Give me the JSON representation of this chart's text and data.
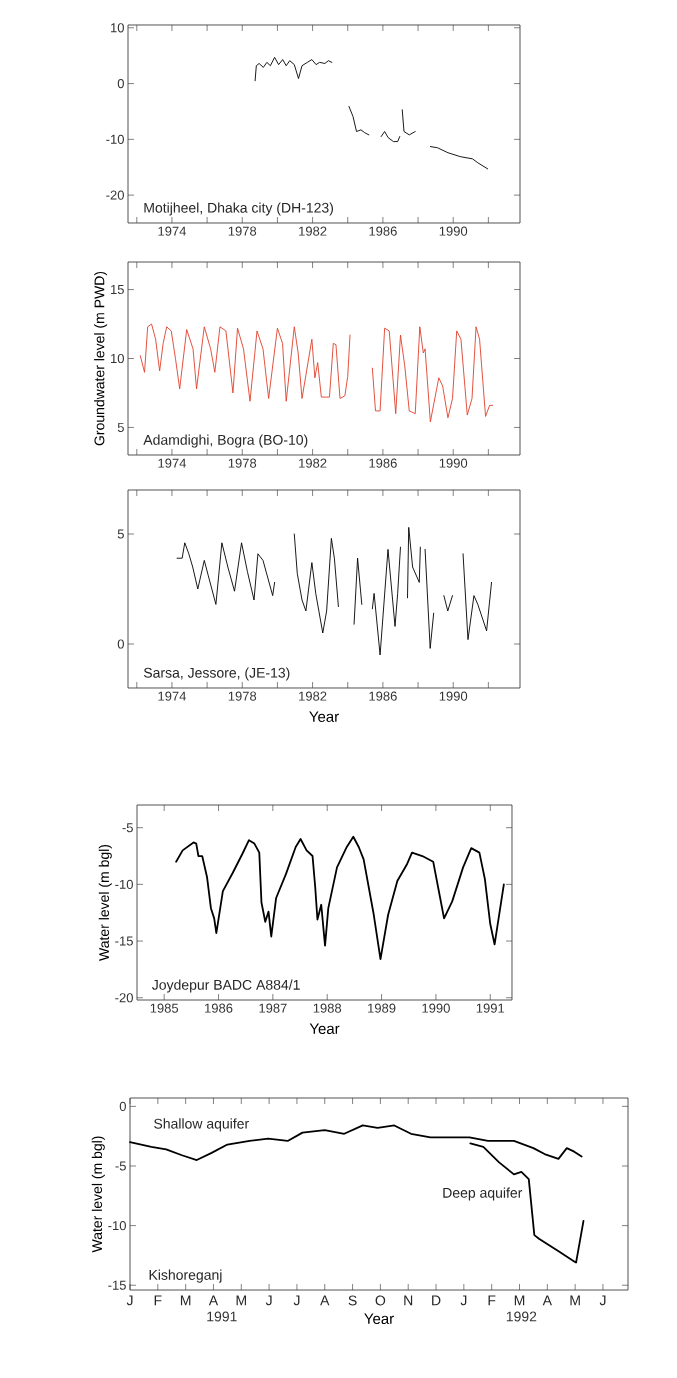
{
  "chart_data": [
    {
      "type": "line",
      "title": "Motijheel, Dhaka city (DH-123)",
      "xlim": [
        1971.5,
        1993.8
      ],
      "ylim": [
        -25,
        10.5
      ],
      "xticks": [
        {
          "value": 1972,
          "label": null
        },
        1974,
        {
          "value": 1976,
          "label": null
        },
        1978,
        {
          "value": 1980,
          "label": null
        },
        1982,
        {
          "value": 1984,
          "label": null
        },
        1986,
        {
          "value": 1988,
          "label": null
        },
        1990,
        {
          "value": 1992,
          "label": null
        }
      ],
      "yticks": [
        10,
        0,
        -10,
        -20
      ],
      "series": [
        {
          "color": "#000000",
          "x": [
            1978.73,
            1978.8,
            1978.96,
            1979.2,
            1979.4,
            1979.6,
            1979.84,
            1980.07,
            1980.3,
            1980.5,
            1980.7,
            1980.96,
            1981.2,
            1981.4,
            1981.7,
            1981.96,
            1982.2,
            1982.4,
            1982.7,
            1982.9,
            1983.1
          ],
          "values": [
            0.5,
            3.2,
            3.6,
            2.9,
            3.8,
            3.2,
            4.7,
            3.4,
            4.3,
            3.2,
            4.1,
            3.4,
            0.9,
            3.2,
            3.8,
            4.3,
            3.4,
            3.8,
            3.6,
            4.1,
            3.8
          ]
        },
        {
          "color": "#000000",
          "x": [
            1984.07,
            1984.3,
            1984.5,
            1984.75,
            1984.96,
            1985.2
          ],
          "values": [
            -4.1,
            -5.9,
            -8.6,
            -8.3,
            -8.8,
            -9.2
          ]
        },
        {
          "color": "#000000",
          "x": [
            1985.9,
            1986.1,
            1986.3,
            1986.6,
            1986.84,
            1986.96
          ],
          "values": [
            -9.5,
            -8.6,
            -9.7,
            -10.4,
            -10.4,
            -9.5
          ]
        },
        {
          "color": "#000000",
          "x": [
            1987.1,
            1987.2,
            1987.5,
            1987.84
          ],
          "values": [
            -4.7,
            -8.6,
            -9.2,
            -8.6
          ]
        },
        {
          "color": "#000000",
          "x": [
            1988.7,
            1989.1,
            1989.7,
            1990.4,
            1991.1,
            1991.4,
            1991.96
          ],
          "values": [
            -11.3,
            -11.5,
            -12.4,
            -13.1,
            -13.5,
            -14.2,
            -15.3
          ]
        }
      ]
    },
    {
      "type": "line",
      "title": "Adamdighi, Bogra (BO-10)",
      "ylabel": "Groundwater level (m PWD)",
      "xlim": [
        1971.5,
        1993.8
      ],
      "ylim": [
        3,
        17
      ],
      "xticks": [
        {
          "value": 1972,
          "label": null
        },
        1974,
        {
          "value": 1976,
          "label": null
        },
        1978,
        {
          "value": 1980,
          "label": null
        },
        1982,
        {
          "value": 1984,
          "label": null
        },
        1986,
        {
          "value": 1988,
          "label": null
        },
        1990,
        {
          "value": 1992,
          "label": null
        }
      ],
      "yticks": [
        15,
        10,
        5
      ],
      "series": [
        {
          "color": "#e0402a",
          "x": [
            1972.2,
            1972.44,
            1972.62,
            1972.84,
            1973.07,
            1973.3,
            1973.5,
            1973.7,
            1973.96,
            1974.2,
            1974.44,
            1974.84,
            1975.2,
            1975.4,
            1975.84,
            1976.2,
            1976.44,
            1976.73,
            1977.07,
            1977.47,
            1977.73,
            1978.07,
            1978.44,
            1978.84,
            1979.18,
            1979.5,
            1980.0,
            1980.29,
            1980.5,
            1980.96,
            1981.18,
            1981.4,
            1981.96,
            1982.13,
            1982.29,
            1982.5,
            1982.96,
            1983.18,
            1983.33,
            1983.56,
            1983.84,
            1984.0,
            1984.13
          ],
          "values": [
            10.2,
            9.0,
            12.3,
            12.5,
            11.4,
            9.1,
            11.1,
            12.3,
            12.0,
            10.0,
            7.8,
            12.1,
            10.7,
            7.8,
            12.3,
            10.7,
            9.0,
            12.3,
            12.0,
            7.5,
            12.2,
            10.7,
            6.9,
            12.0,
            10.7,
            7.1,
            12.2,
            11.1,
            6.9,
            12.3,
            10.4,
            7.1,
            11.4,
            8.6,
            9.7,
            7.2,
            7.2,
            11.1,
            11.0,
            7.1,
            7.3,
            8.7,
            11.7
          ]
        },
        {
          "color": "#e0402a",
          "x": [
            1985.4,
            1985.58,
            1985.84,
            1986.1,
            1986.36,
            1986.73,
            1987.0,
            1987.24,
            1987.5,
            1987.84,
            1988.1,
            1988.3,
            1988.4,
            1988.7,
            1989.18,
            1989.4,
            1989.7,
            1989.96,
            1990.2,
            1990.44,
            1990.8,
            1991.07,
            1991.3,
            1991.5,
            1991.84,
            1992.07,
            1992.24
          ],
          "values": [
            9.3,
            6.2,
            6.2,
            12.2,
            12.0,
            6.0,
            11.7,
            9.5,
            6.2,
            6.0,
            12.3,
            10.4,
            10.7,
            5.4,
            8.6,
            8.0,
            5.7,
            7.1,
            12.0,
            11.4,
            5.9,
            7.1,
            12.3,
            11.4,
            5.8,
            6.6,
            6.6
          ]
        }
      ]
    },
    {
      "type": "line",
      "title": "Sarsa, Jessore, (JE-13)",
      "xlabel": "Year",
      "xlim": [
        1971.5,
        1993.8
      ],
      "ylim": [
        -2,
        7
      ],
      "xticks": [
        {
          "value": 1972,
          "label": null
        },
        1974,
        {
          "value": 1976,
          "label": null
        },
        1978,
        {
          "value": 1980,
          "label": null
        },
        1982,
        {
          "value": 1984,
          "label": null
        },
        1986,
        {
          "value": 1988,
          "label": null
        },
        1990,
        {
          "value": 1992,
          "label": null
        }
      ],
      "yticks": [
        5,
        0
      ],
      "series": [
        {
          "color": "#000000",
          "x": [
            1974.29,
            1974.58,
            1974.73,
            1974.96,
            1975.18,
            1975.47,
            1975.84,
            1976.07,
            1976.5,
            1976.84,
            1977.18,
            1977.56,
            1977.96,
            1978.29,
            1978.67,
            1978.89,
            1979.18,
            1979.73,
            1979.84
          ],
          "values": [
            3.9,
            3.9,
            4.6,
            4.1,
            3.5,
            2.5,
            3.8,
            3.1,
            1.8,
            4.6,
            3.5,
            2.4,
            4.6,
            3.3,
            2.0,
            4.1,
            3.8,
            2.2,
            2.8
          ]
        },
        {
          "color": "#000000",
          "x": [
            1980.96,
            1981.13,
            1981.4,
            1981.62,
            1981.96,
            1982.18,
            1982.58,
            1982.8,
            1983.07,
            1983.24,
            1983.47
          ],
          "values": [
            5.0,
            3.2,
            2.0,
            1.5,
            3.7,
            2.3,
            0.5,
            1.5,
            4.8,
            3.9,
            1.7
          ]
        },
        {
          "color": "#000000",
          "x": [
            1984.36,
            1984.56,
            1984.8
          ],
          "values": [
            0.9,
            3.9,
            1.8
          ]
        },
        {
          "color": "#000000",
          "x": [
            1985.4,
            1985.5,
            1985.84,
            1986.29,
            1986.69,
            1986.84,
            1987.0
          ],
          "values": [
            1.6,
            2.3,
            -0.5,
            4.3,
            0.8,
            2.3,
            4.4
          ]
        },
        {
          "color": "#000000",
          "x": [
            1987.4,
            1987.47,
            1987.69,
            1988.07,
            1988.13
          ],
          "values": [
            2.1,
            5.3,
            3.5,
            2.8,
            4.4
          ]
        },
        {
          "color": "#000000",
          "x": [
            1988.4,
            1988.69,
            1988.89
          ],
          "values": [
            4.3,
            -0.2,
            1.4
          ]
        },
        {
          "color": "#000000",
          "x": [
            1989.47,
            1989.69,
            1989.96
          ],
          "values": [
            2.2,
            1.5,
            2.2
          ]
        },
        {
          "color": "#000000",
          "x": [
            1990.56,
            1990.84,
            1991.18,
            1991.4,
            1991.9,
            1992.18
          ],
          "values": [
            4.1,
            0.2,
            2.2,
            1.8,
            0.6,
            2.8
          ]
        }
      ]
    },
    {
      "type": "line",
      "title": "Joydepur BADC A884/1",
      "xlabel": "Year",
      "ylabel": "Water level (m bgl)",
      "xlim": [
        1984.5,
        1991.4
      ],
      "ylim": [
        -20.2,
        -3
      ],
      "xticks": [
        1985,
        1986,
        1987,
        1988,
        1989,
        1990,
        1991
      ],
      "yticks": [
        -5,
        -10,
        -15,
        -20
      ],
      "series": [
        {
          "color": "#000000",
          "x": [
            1985.22,
            1985.34,
            1985.54,
            1985.59,
            1985.63,
            1985.7,
            1985.79,
            1985.86,
            1985.92,
            1985.96,
            1986.08,
            1986.26,
            1986.44,
            1986.56,
            1986.66,
            1986.75,
            1986.79,
            1986.86,
            1986.92,
            1986.97,
            1987.06,
            1987.24,
            1987.42,
            1987.51,
            1987.62,
            1987.73,
            1987.78,
            1987.82,
            1987.89,
            1987.96,
            1988.02,
            1988.18,
            1988.36,
            1988.48,
            1988.58,
            1988.67,
            1988.85,
            1988.98,
            1989.12,
            1989.29,
            1989.47,
            1989.56,
            1989.75,
            1989.95,
            1990.05,
            1990.15,
            1990.3,
            1990.5,
            1990.65,
            1990.8,
            1990.9,
            1991.0,
            1991.08,
            1991.25
          ],
          "values": [
            -8.0,
            -7.0,
            -6.3,
            -6.4,
            -7.5,
            -7.5,
            -9.4,
            -12.1,
            -13.0,
            -14.3,
            -10.6,
            -9.0,
            -7.3,
            -6.1,
            -6.4,
            -7.2,
            -11.6,
            -13.3,
            -12.4,
            -14.6,
            -11.2,
            -9.1,
            -6.7,
            -6.0,
            -7.0,
            -7.5,
            -10.3,
            -13.1,
            -11.8,
            -15.4,
            -12.1,
            -8.5,
            -6.7,
            -5.8,
            -6.7,
            -7.8,
            -12.5,
            -16.6,
            -12.7,
            -9.7,
            -8.2,
            -7.2,
            -7.5,
            -8.0,
            -10.5,
            -13.0,
            -11.5,
            -8.5,
            -6.8,
            -7.2,
            -9.5,
            -13.5,
            -15.3,
            -10.0
          ]
        }
      ]
    },
    {
      "type": "line",
      "title": "Kishoreganj",
      "xlabel": "Year",
      "ylabel": "Water level (m bgl)",
      "xlim": [
        "1991-01-01",
        "1992-06-28"
      ],
      "ylim": [
        -15.4,
        0.7
      ],
      "annotations": [
        "J",
        "F",
        "M",
        "A",
        "M",
        "J",
        "J",
        "A",
        "S",
        "O",
        "N",
        "D",
        "J",
        "F",
        "M",
        "A",
        "M",
        "J"
      ],
      "xticks": [
        {
          "value": "1991-01",
          "label": null
        },
        {
          "value": "1991-02",
          "label": null
        },
        {
          "value": "1991-03",
          "label": null
        },
        {
          "value": "1991-04",
          "label": null
        },
        {
          "value": "1991-05",
          "label": null
        },
        {
          "value": "1991-06",
          "label": null
        },
        {
          "value": "1991-07",
          "label": null
        },
        {
          "value": "1991-08",
          "label": null
        },
        {
          "value": "1991-09",
          "label": null
        },
        {
          "value": "1991-10",
          "label": null
        },
        {
          "value": "1991-11",
          "label": null
        },
        {
          "value": "1991-12",
          "label": null
        },
        {
          "value": "1992-01",
          "label": null
        },
        {
          "value": "1992-02",
          "label": null
        },
        {
          "value": "1992-03",
          "label": null
        },
        {
          "value": "1992-04",
          "label": null
        },
        {
          "value": "1992-05",
          "label": null
        },
        {
          "value": "1992-06",
          "label": null
        },
        {
          "value": "1991-04-10",
          "label": "1991"
        },
        {
          "value": "1992-03-03",
          "label": "1992"
        }
      ],
      "yticks": [
        0,
        -5,
        -10,
        -15
      ],
      "series": [
        {
          "name": "Shallow aquifer",
          "color": "#000000",
          "x": [
            "1991-01-01",
            "1991-01-24",
            "1991-02-10",
            "1991-02-27",
            "1991-03-13",
            "1991-03-29",
            "1991-04-16",
            "1991-05-10",
            "1991-05-30",
            "1991-06-21",
            "1991-07-07",
            "1991-08-01",
            "1991-08-22",
            "1991-09-12",
            "1991-09-28",
            "1991-10-16",
            "1991-11-04",
            "1991-11-25",
            "1992-01-07",
            "1992-01-27",
            "1992-02-25",
            "1992-03-16",
            "1992-03-28",
            "1992-04-13",
            "1992-04-22",
            "1992-04-30",
            "1992-05-08"
          ],
          "values": [
            -3.0,
            -3.4,
            -3.6,
            -4.1,
            -4.5,
            -3.9,
            -3.2,
            -2.9,
            -2.7,
            -2.9,
            -2.2,
            -2.0,
            -2.3,
            -1.6,
            -1.8,
            -1.6,
            -2.3,
            -2.6,
            -2.6,
            -2.9,
            -2.9,
            -3.5,
            -4.0,
            -4.4,
            -3.5,
            -3.8,
            -4.2
          ]
        },
        {
          "name": "Deep aquifer",
          "color": "#000000",
          "x": [
            "1992-01-08",
            "1992-01-22",
            "1992-02-09",
            "1992-02-25",
            "1992-03-03",
            "1992-03-11",
            "1992-03-17",
            "1992-03-22",
            "1992-04-14",
            "1992-04-30",
            "1992-05-02",
            "1992-05-10"
          ],
          "values": [
            -3.1,
            -3.4,
            -4.7,
            -5.7,
            -5.5,
            -6.1,
            -10.8,
            -11.1,
            -12.2,
            -13.0,
            -13.1,
            -9.6
          ]
        }
      ]
    }
  ]
}
